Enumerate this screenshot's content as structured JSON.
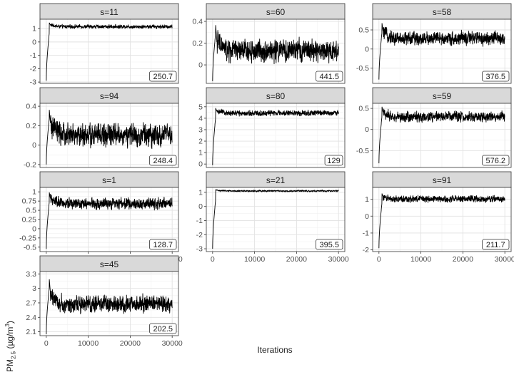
{
  "chart_data": {
    "type": "line",
    "xlabel": "Iterations",
    "ylabel": {
      "main": "PM",
      "sub": "2.5",
      "unit_pre": " (µg/m",
      "unit_sup": "3",
      "unit_post": ")"
    },
    "x_ticks": [
      0,
      10000,
      20000,
      30000
    ],
    "x_range": [
      -1500,
      31500
    ],
    "panels": [
      {
        "title": "s=11",
        "annotation": "250.7",
        "ylim": [
          -3.1,
          1.7
        ],
        "y_ticks": [
          1,
          0,
          -1,
          -2,
          -3
        ],
        "start": -2.9,
        "level": 1.15,
        "noise": 0.09,
        "peak": 1.45
      },
      {
        "title": "s=60",
        "annotation": "441.5",
        "ylim": [
          -0.17,
          0.42
        ],
        "y_ticks": [
          0.4,
          0.2,
          0.0
        ],
        "start": -0.15,
        "level": 0.13,
        "noise": 0.07,
        "peak": 0.38
      },
      {
        "title": "s=58",
        "annotation": "376.5",
        "ylim": [
          -0.9,
          0.78
        ],
        "y_ticks": [
          0.5,
          0.0,
          -0.5
        ],
        "start": -0.8,
        "level": 0.28,
        "noise": 0.12,
        "peak": 0.7
      },
      {
        "title": "s=94",
        "annotation": "248.4",
        "ylim": [
          -0.23,
          0.43
        ],
        "y_ticks": [
          0.4,
          0.2,
          0.0,
          -0.2
        ],
        "start": -0.2,
        "level": 0.1,
        "noise": 0.08,
        "peak": 0.38
      },
      {
        "title": "s=80",
        "annotation": "129",
        "ylim": [
          -0.3,
          5.3
        ],
        "y_ticks": [
          5,
          4,
          3,
          2,
          1,
          0
        ],
        "start": -0.1,
        "level": 4.45,
        "noise": 0.16,
        "peak": 4.9
      },
      {
        "title": "s=59",
        "annotation": "576.2",
        "ylim": [
          -0.9,
          0.62
        ],
        "y_ticks": [
          0.5,
          0.0,
          -0.5
        ],
        "start": -0.8,
        "level": 0.3,
        "noise": 0.08,
        "peak": 0.55
      },
      {
        "title": "s=1",
        "annotation": "128.7",
        "ylim": [
          -0.62,
          1.12
        ],
        "y_ticks": [
          1.0,
          0.75,
          0.5,
          0.25,
          0.0,
          -0.25,
          -0.5
        ],
        "start": -0.55,
        "level": 0.68,
        "noise": 0.1,
        "peak": 1.0
      },
      {
        "title": "s=21",
        "annotation": "395.5",
        "ylim": [
          -3.2,
          1.35
        ],
        "y_ticks": [
          1,
          0,
          -1,
          -2,
          -3
        ],
        "start": -3.0,
        "level": 1.1,
        "noise": 0.04,
        "peak": 1.2
      },
      {
        "title": "s=91",
        "annotation": "211.7",
        "ylim": [
          -2.1,
          1.7
        ],
        "y_ticks": [
          1,
          0,
          -1,
          -2
        ],
        "start": -1.9,
        "level": 1.02,
        "noise": 0.13,
        "peak": 1.35
      },
      {
        "title": "s=45",
        "annotation": "202.5",
        "ylim": [
          2.02,
          3.35
        ],
        "y_ticks": [
          3.3,
          3.0,
          2.7,
          2.4,
          2.1
        ],
        "start": 2.05,
        "level": 2.68,
        "noise": 0.12,
        "peak": 3.22
      }
    ]
  }
}
